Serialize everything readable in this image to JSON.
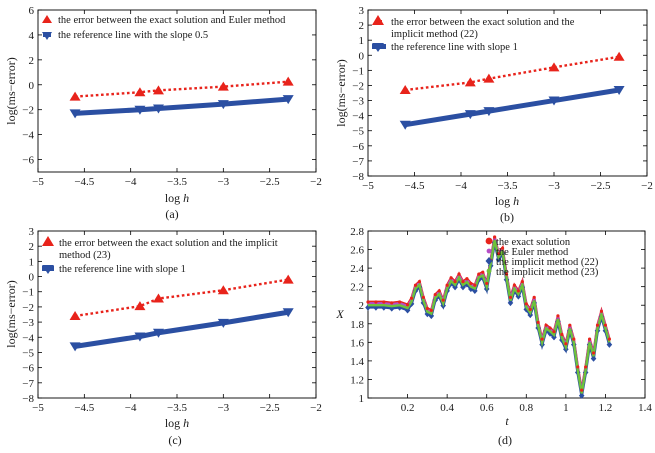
{
  "chart_data": [
    {
      "type": "line",
      "caption": "(a)",
      "xlabel_prefix": "log ",
      "xlabel_var": "h",
      "ylabel": "log(ms−error)",
      "xlim": [
        -5,
        -2
      ],
      "ylim": [
        -7,
        6
      ],
      "xticks": [
        -5,
        -4.5,
        -4,
        -3.5,
        -3,
        -2.5,
        -2
      ],
      "xtick_labels": [
        "−5",
        "−4.5",
        "−4",
        "−3.5",
        "−3",
        "−2.5",
        "−2"
      ],
      "yticks": [
        -6,
        -4,
        -2,
        0,
        2,
        4,
        6
      ],
      "ytick_labels": [
        "−6",
        "−4",
        "−2",
        "0",
        "2",
        "4",
        "6"
      ],
      "legend_position": "top-left",
      "series": [
        {
          "name": "error",
          "legend_lines": [
            "the error between the exact solution and Euler method"
          ],
          "color": "#e8231b",
          "style": "dotted-triangle-up",
          "x": [
            -4.6,
            -3.9,
            -3.7,
            -3.0,
            -2.3
          ],
          "y": [
            -0.95,
            -0.6,
            -0.45,
            -0.15,
            0.25
          ]
        },
        {
          "name": "reference",
          "legend_lines": [
            "the reference line with the slope  0.5"
          ],
          "color": "#2b4fa2",
          "style": "thick-triangle-down",
          "x": [
            -4.6,
            -3.9,
            -3.7,
            -3.0,
            -2.3
          ],
          "y": [
            -2.3,
            -2.0,
            -1.9,
            -1.55,
            -1.15
          ]
        }
      ]
    },
    {
      "type": "line",
      "caption": "(b)",
      "xlabel_prefix": "log ",
      "xlabel_var": "h",
      "ylabel": "log(ms−error)",
      "xlim": [
        -5,
        -2
      ],
      "ylim": [
        -8,
        3
      ],
      "xticks": [
        -5,
        -4.5,
        -4,
        -3.5,
        -3,
        -2.5,
        -2
      ],
      "xtick_labels": [
        "−5",
        "−4.5",
        "−4",
        "−3.5",
        "−3",
        "−2.5",
        "−2"
      ],
      "yticks": [
        -8,
        -7,
        -6,
        -5,
        -4,
        -3,
        -2,
        -1,
        0,
        1,
        2,
        3
      ],
      "ytick_labels": [
        "−8",
        "−7",
        "−6",
        "−5",
        "−4",
        "−3",
        "−2",
        "−1",
        "0",
        "1",
        "2",
        "3"
      ],
      "legend_position": "top-left",
      "series": [
        {
          "name": "error",
          "legend_lines": [
            "the error between the exact solution and the",
            "implicit method (22)"
          ],
          "color": "#e8231b",
          "style": "dotted-triangle-up",
          "x": [
            -4.6,
            -3.9,
            -3.7,
            -3.0,
            -2.3
          ],
          "y": [
            -2.3,
            -1.8,
            -1.55,
            -0.8,
            -0.1
          ]
        },
        {
          "name": "reference",
          "legend_lines": [
            "the reference line with slope 1"
          ],
          "color": "#2b4fa2",
          "style": "thick-triangle-down",
          "x": [
            -4.6,
            -3.9,
            -3.7,
            -3.0,
            -2.3
          ],
          "y": [
            -4.6,
            -3.9,
            -3.7,
            -3.0,
            -2.3
          ]
        }
      ]
    },
    {
      "type": "line",
      "caption": "(c)",
      "xlabel_prefix": "log ",
      "xlabel_var": "h",
      "ylabel": "log(ms−error)",
      "xlim": [
        -5,
        -2
      ],
      "ylim": [
        -8,
        3
      ],
      "xticks": [
        -5,
        -4.5,
        -4,
        -3.5,
        -3,
        -2.5,
        -2
      ],
      "xtick_labels": [
        "−5",
        "−4.5",
        "−4",
        "−3.5",
        "−3",
        "−2.5",
        "−2"
      ],
      "yticks": [
        -8,
        -7,
        -6,
        -5,
        -4,
        -3,
        -2,
        -1,
        0,
        1,
        2,
        3
      ],
      "ytick_labels": [
        "−8",
        "−7",
        "−6",
        "−5",
        "−4",
        "−3",
        "−2",
        "−1",
        "0",
        "1",
        "2",
        "3"
      ],
      "legend_position": "top-left",
      "series": [
        {
          "name": "error",
          "legend_lines": [
            "the error between the exact solution and the implicit",
            "method (23)"
          ],
          "color": "#e8231b",
          "style": "dotted-triangle-up",
          "x": [
            -4.6,
            -3.9,
            -3.7,
            -3.0,
            -2.3
          ],
          "y": [
            -2.6,
            -1.95,
            -1.45,
            -0.9,
            -0.2
          ]
        },
        {
          "name": "reference",
          "legend_lines": [
            "the reference line with slope 1"
          ],
          "color": "#2b4fa2",
          "style": "thick-triangle-down",
          "x": [
            -4.6,
            -3.9,
            -3.7,
            -3.0,
            -2.3
          ],
          "y": [
            -4.6,
            -3.95,
            -3.7,
            -3.05,
            -2.35
          ]
        }
      ]
    },
    {
      "type": "line",
      "caption": "(d)",
      "xlabel": "t",
      "ylabel": "X",
      "xlim": [
        0,
        1.4
      ],
      "ylim": [
        1.0,
        2.8
      ],
      "xticks": [
        0.2,
        0.4,
        0.6,
        0.8,
        1.0,
        1.2,
        1.4
      ],
      "xtick_labels": [
        "0.2",
        "0.4",
        "0.6",
        "0.8",
        "1",
        "1.2",
        "1.4"
      ],
      "yticks": [
        1.0,
        1.2,
        1.4,
        1.6,
        1.8,
        2.0,
        2.2,
        2.4,
        2.6,
        2.8
      ],
      "ytick_labels": [
        "1",
        "1.2",
        "1.4",
        "1.6",
        "1.8",
        "2",
        "2.2",
        "2.4",
        "2.6",
        "2.8"
      ],
      "legend_position": "top-right",
      "path_t": [
        0,
        0.04,
        0.08,
        0.12,
        0.16,
        0.2,
        0.22,
        0.24,
        0.26,
        0.28,
        0.3,
        0.32,
        0.34,
        0.36,
        0.38,
        0.4,
        0.42,
        0.44,
        0.46,
        0.48,
        0.5,
        0.52,
        0.54,
        0.56,
        0.58,
        0.6,
        0.62,
        0.64,
        0.66,
        0.68,
        0.7,
        0.72,
        0.74,
        0.76,
        0.78,
        0.8,
        0.82,
        0.84,
        0.86,
        0.88,
        0.9,
        0.92,
        0.94,
        0.96,
        0.98,
        1.0,
        1.02,
        1.04,
        1.06,
        1.08,
        1.1,
        1.12,
        1.14,
        1.16,
        1.18,
        1.2,
        1.22
      ],
      "path_x": [
        2.0,
        2.0,
        2.0,
        1.99,
        2.0,
        1.97,
        2.04,
        2.18,
        2.22,
        2.05,
        1.93,
        1.91,
        2.08,
        2.12,
        2.02,
        2.18,
        2.26,
        2.22,
        2.3,
        2.22,
        2.25,
        2.2,
        2.18,
        2.3,
        2.32,
        2.2,
        2.45,
        2.7,
        2.52,
        2.58,
        2.3,
        2.05,
        2.18,
        2.12,
        2.22,
        1.98,
        1.92,
        2.05,
        1.78,
        1.6,
        1.75,
        1.72,
        1.68,
        1.85,
        1.65,
        1.55,
        1.75,
        1.6,
        1.3,
        1.05,
        1.3,
        1.6,
        1.45,
        1.75,
        1.9,
        1.75,
        1.6
      ],
      "series": [
        {
          "name": "exact",
          "legend": "the exact solution",
          "color": "#e8231b",
          "marker": "circle"
        },
        {
          "name": "euler",
          "legend": "the Euler method",
          "color": "#b64ec6",
          "marker": "point"
        },
        {
          "name": "implicit22",
          "legend": "the implicit method (22)",
          "color": "#2b4fa2",
          "marker": "diamond"
        },
        {
          "name": "implicit23",
          "legend": "the implicit method (23)",
          "color": "#6fc23a",
          "marker": "point"
        }
      ]
    }
  ]
}
